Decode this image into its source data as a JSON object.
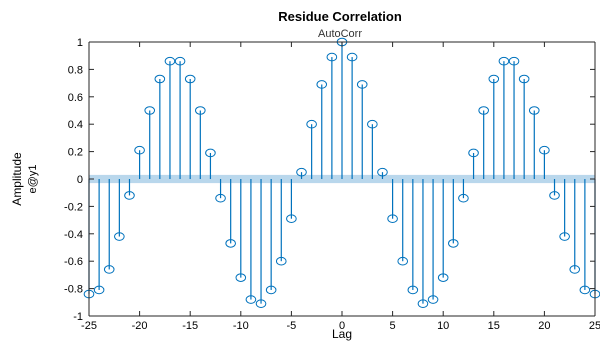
{
  "chart_data": {
    "type": "stem",
    "title": "Residue Correlation",
    "subtitle": "AutoCorr",
    "xlabel": "Lag",
    "ylabel": "Amplitude",
    "ylabel_secondary": "e@y1",
    "xlim": [
      -25,
      25
    ],
    "ylim": [
      -1,
      1
    ],
    "xticks": [
      -25,
      -20,
      -15,
      -10,
      -5,
      0,
      5,
      10,
      15,
      20,
      25
    ],
    "yticks": [
      -1,
      -0.8,
      -0.6,
      -0.4,
      -0.2,
      0,
      0.2,
      0.4,
      0.6,
      0.8,
      1
    ],
    "confidence_band": [
      -0.03,
      0.03
    ],
    "color": "#0072BD",
    "band_color": "#B9D7EC",
    "lags": [
      -25,
      -24,
      -23,
      -22,
      -21,
      -20,
      -19,
      -18,
      -17,
      -16,
      -15,
      -14,
      -13,
      -12,
      -11,
      -10,
      -9,
      -8,
      -7,
      -6,
      -5,
      -4,
      -3,
      -2,
      -1,
      0,
      1,
      2,
      3,
      4,
      5,
      6,
      7,
      8,
      9,
      10,
      11,
      12,
      13,
      14,
      15,
      16,
      17,
      18,
      19,
      20,
      21,
      22,
      23,
      24,
      25
    ],
    "values": [
      -0.84,
      -0.81,
      -0.66,
      -0.42,
      -0.12,
      0.21,
      0.5,
      0.73,
      0.86,
      0.86,
      0.73,
      0.5,
      0.19,
      -0.14,
      -0.47,
      -0.72,
      -0.88,
      -0.91,
      -0.81,
      -0.6,
      -0.29,
      0.05,
      0.4,
      0.69,
      0.89,
      1.0,
      0.89,
      0.69,
      0.4,
      0.05,
      -0.29,
      -0.6,
      -0.81,
      -0.91,
      -0.88,
      -0.72,
      -0.47,
      -0.14,
      0.19,
      0.5,
      0.73,
      0.86,
      0.86,
      0.73,
      0.5,
      0.21,
      -0.12,
      -0.42,
      -0.66,
      -0.81,
      -0.84
    ]
  }
}
